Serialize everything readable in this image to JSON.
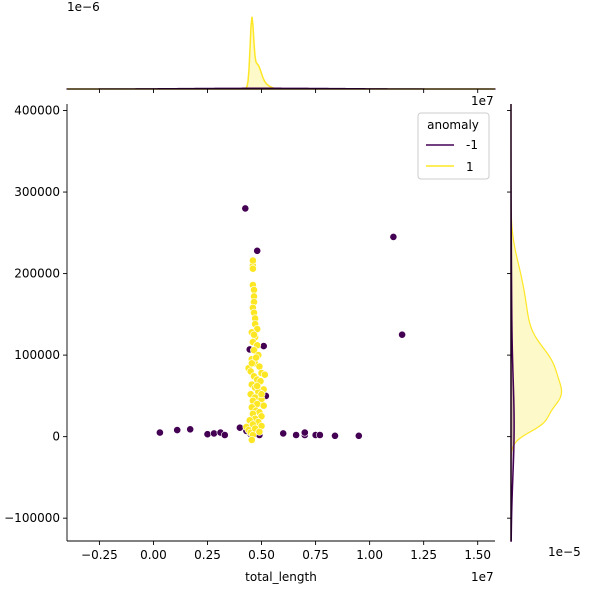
{
  "chart_data": {
    "type": "scatter",
    "title": "",
    "xlabel": "total_length",
    "ylabel": "",
    "x_multiplier_label": "1e7",
    "xlim": [
      -0.4,
      1.58
    ],
    "ylim": [
      -128000,
      408000
    ],
    "x_ticks": [
      -0.25,
      0.0,
      0.25,
      0.5,
      0.75,
      1.0,
      1.25,
      1.5
    ],
    "x_tick_labels": [
      "−0.25",
      "0.00",
      "0.25",
      "0.50",
      "0.75",
      "1.00",
      "1.25",
      "1.50"
    ],
    "y_ticks": [
      -100000,
      0,
      100000,
      200000,
      300000,
      400000
    ],
    "y_tick_labels": [
      "−100000",
      "0",
      "100000",
      "200000",
      "300000",
      "400000"
    ],
    "grid": false,
    "legend": {
      "title": "anomaly",
      "placement": "top-right",
      "entries": [
        {
          "label": "-1",
          "color": "#440154"
        },
        {
          "label": "1",
          "color": "#fde725"
        }
      ]
    },
    "series": [
      {
        "name": "-1",
        "color": "#440154",
        "points": [
          [
            0.03,
            5000
          ],
          [
            0.11,
            8000
          ],
          [
            0.17,
            9000
          ],
          [
            0.25,
            3000
          ],
          [
            0.28,
            4000
          ],
          [
            0.31,
            5000
          ],
          [
            0.33,
            2000
          ],
          [
            0.4,
            11000
          ],
          [
            0.43,
            7000
          ],
          [
            0.45,
            3000
          ],
          [
            0.425,
            280000
          ],
          [
            0.445,
            107000
          ],
          [
            0.48,
            228000
          ],
          [
            0.49,
            2000
          ],
          [
            0.52,
            50000
          ],
          [
            0.51,
            111000
          ],
          [
            0.6,
            4000
          ],
          [
            0.66,
            2000
          ],
          [
            0.7,
            2000
          ],
          [
            0.7,
            5000
          ],
          [
            0.75,
            2000
          ],
          [
            0.77,
            2000
          ],
          [
            0.84,
            1000
          ],
          [
            0.95,
            1000
          ],
          [
            1.11,
            245000
          ],
          [
            1.15,
            125000
          ]
        ]
      },
      {
        "name": "1",
        "color": "#fde725",
        "points": [
          [
            0.46,
            210000
          ],
          [
            0.46,
            216000
          ],
          [
            0.46,
            206000
          ],
          [
            0.46,
            186000
          ],
          [
            0.465,
            180000
          ],
          [
            0.465,
            172000
          ],
          [
            0.465,
            165000
          ],
          [
            0.46,
            158000
          ],
          [
            0.465,
            152000
          ],
          [
            0.47,
            145000
          ],
          [
            0.47,
            138000
          ],
          [
            0.48,
            132000
          ],
          [
            0.455,
            128000
          ],
          [
            0.47,
            122000
          ],
          [
            0.46,
            116000
          ],
          [
            0.48,
            112000
          ],
          [
            0.465,
            106000
          ],
          [
            0.485,
            100000
          ],
          [
            0.455,
            95000
          ],
          [
            0.47,
            90000
          ],
          [
            0.49,
            86000
          ],
          [
            0.44,
            84000
          ],
          [
            0.45,
            80000
          ],
          [
            0.5,
            78000
          ],
          [
            0.515,
            76000
          ],
          [
            0.465,
            74000
          ],
          [
            0.48,
            70000
          ],
          [
            0.495,
            68000
          ],
          [
            0.455,
            64000
          ],
          [
            0.47,
            60000
          ],
          [
            0.51,
            58000
          ],
          [
            0.485,
            55000
          ],
          [
            0.45,
            52000
          ],
          [
            0.47,
            48000
          ],
          [
            0.5,
            46000
          ],
          [
            0.46,
            44000
          ],
          [
            0.48,
            40000
          ],
          [
            0.51,
            38000
          ],
          [
            0.455,
            36000
          ],
          [
            0.475,
            32000
          ],
          [
            0.49,
            30000
          ],
          [
            0.46,
            28000
          ],
          [
            0.5,
            25000
          ],
          [
            0.47,
            22000
          ],
          [
            0.445,
            20000
          ],
          [
            0.485,
            18000
          ],
          [
            0.46,
            15000
          ],
          [
            0.5,
            13000
          ],
          [
            0.43,
            12000
          ],
          [
            0.44,
            8000
          ],
          [
            0.45,
            5000
          ],
          [
            0.46,
            2000
          ],
          [
            0.455,
            -4000
          ],
          [
            0.47,
            10000
          ],
          [
            0.49,
            6000
          ],
          [
            0.48,
            62000
          ],
          [
            0.5,
            52000
          ],
          [
            0.455,
            90000
          ],
          [
            0.475,
            97000
          ],
          [
            0.465,
            125000
          ]
        ]
      }
    ],
    "marginal_x": {
      "multiplier_label": "1e−6",
      "series": [
        {
          "name": "1",
          "color": "#fde725",
          "fill": true
        },
        {
          "name": "-1",
          "color": "#440154",
          "fill": true
        }
      ]
    },
    "marginal_y": {
      "multiplier_label": "1e−5",
      "series": [
        {
          "name": "1",
          "color": "#fde725",
          "fill": true
        },
        {
          "name": "-1",
          "color": "#440154",
          "fill": true
        }
      ]
    }
  }
}
